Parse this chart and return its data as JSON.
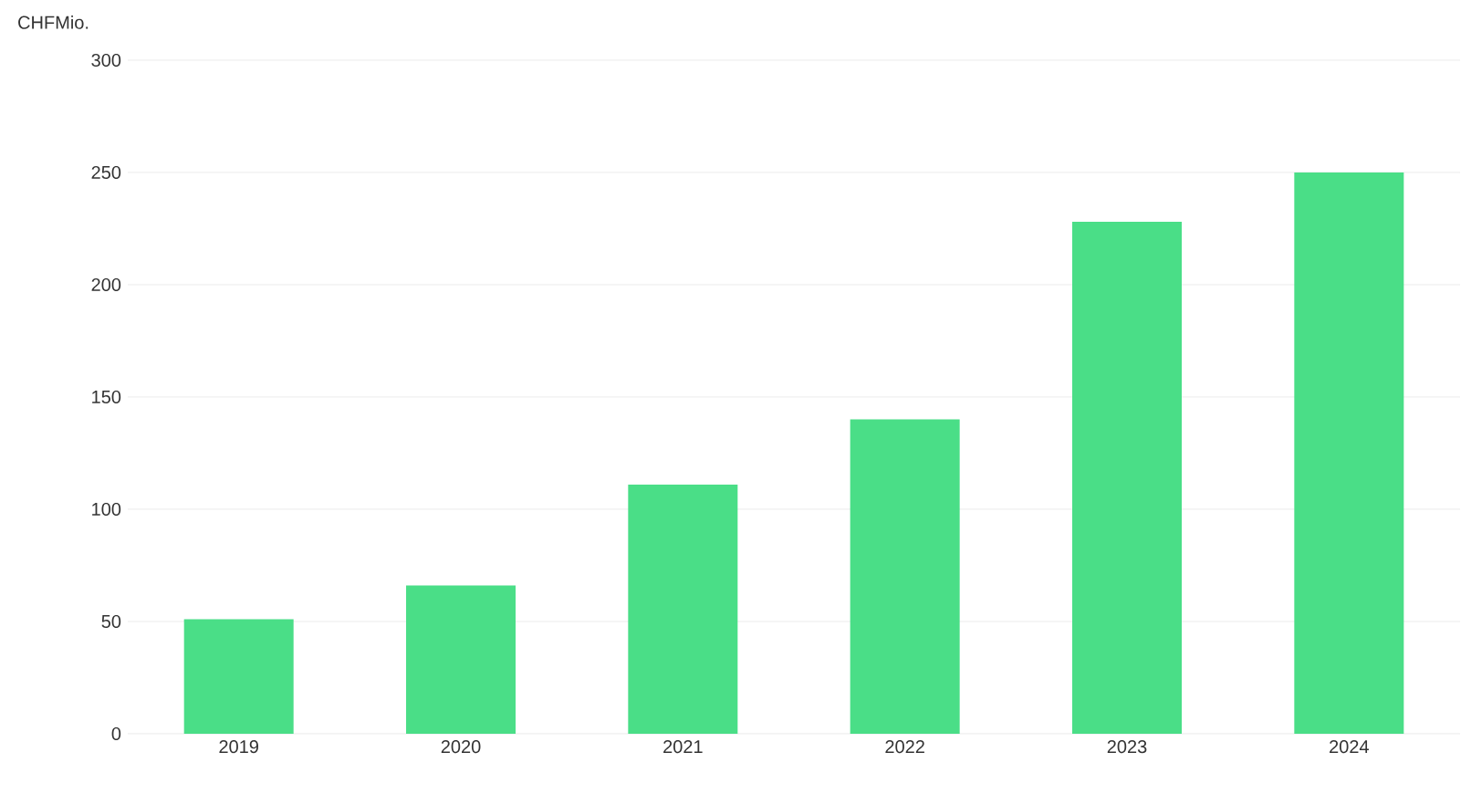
{
  "chart_data": {
    "type": "bar",
    "ylabel": "CHFMio.",
    "categories": [
      "2019",
      "2020",
      "2021",
      "2022",
      "2023",
      "2024"
    ],
    "values": [
      51,
      66,
      111,
      140,
      228,
      250
    ],
    "color": "#4ade87",
    "ylim": [
      0,
      300
    ],
    "yticks": [
      0,
      50,
      100,
      150,
      200,
      250,
      300
    ],
    "grid": "y"
  }
}
